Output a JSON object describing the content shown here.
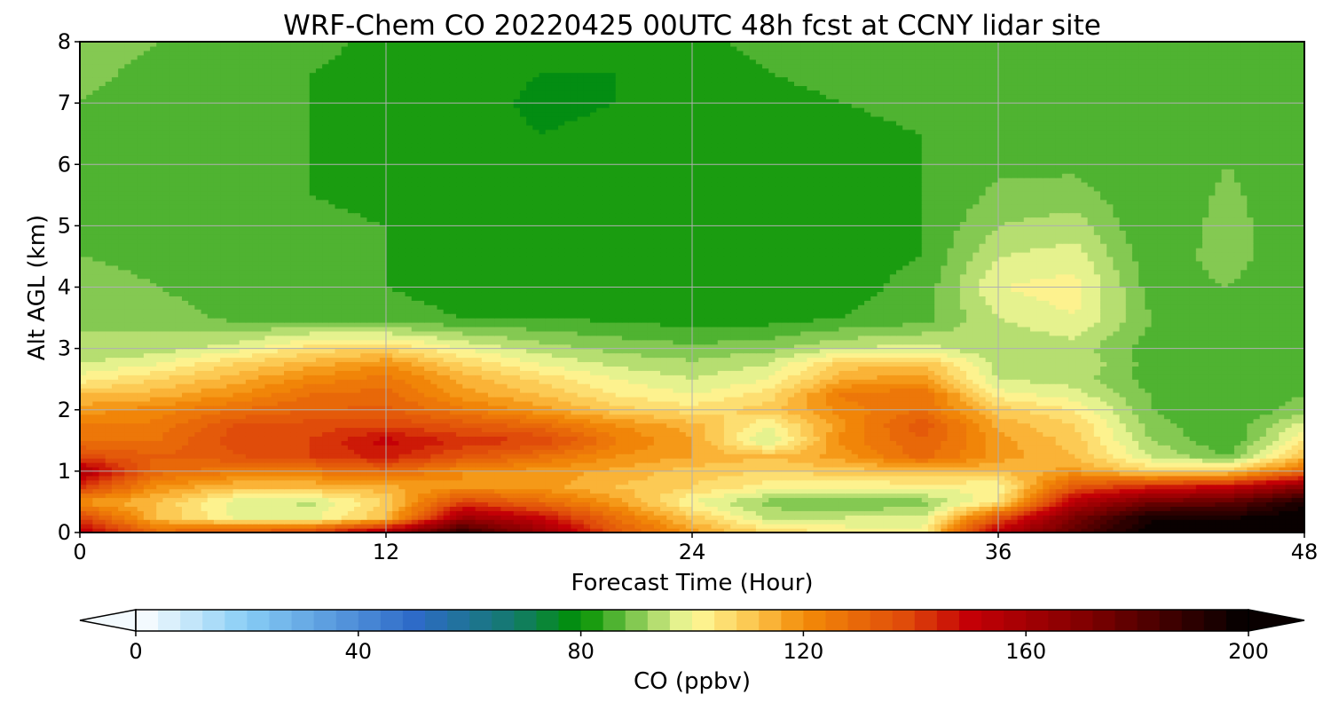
{
  "chart_data": {
    "type": "heatmap",
    "title": "WRF-Chem CO  20220425 00UTC 48h fcst at CCNY lidar site",
    "xlabel": "Forecast Time (Hour)",
    "ylabel": "Alt AGL (km)",
    "xlim": [
      0,
      48
    ],
    "ylim": [
      0,
      8
    ],
    "x_ticks": [
      "0",
      "12",
      "24",
      "36",
      "48"
    ],
    "y_ticks": [
      "0",
      "1",
      "2",
      "3",
      "4",
      "5",
      "6",
      "7",
      "8"
    ],
    "grid": true,
    "colorbar": {
      "label": "CO  (ppbv)",
      "range": [
        0,
        200
      ],
      "ticks": [
        "0",
        "40",
        "80",
        "120",
        "160",
        "200"
      ],
      "extend": "both",
      "colors": [
        {
          "value": 0,
          "color": "#ffffff"
        },
        {
          "value": 20,
          "color": "#87cdf5"
        },
        {
          "value": 50,
          "color": "#2e6bc8"
        },
        {
          "value": 68,
          "color": "#137a6c"
        },
        {
          "value": 80,
          "color": "#009100"
        },
        {
          "value": 92,
          "color": "#9ed462"
        },
        {
          "value": 100,
          "color": "#fdfc9c"
        },
        {
          "value": 112,
          "color": "#fcc046"
        },
        {
          "value": 120,
          "color": "#f38c08"
        },
        {
          "value": 138,
          "color": "#e04c0a"
        },
        {
          "value": 150,
          "color": "#c40006"
        },
        {
          "value": 172,
          "color": "#7c0000"
        },
        {
          "value": 200,
          "color": "#000000"
        }
      ]
    },
    "x": [
      0,
      3,
      6,
      9,
      12,
      15,
      18,
      21,
      24,
      27,
      30,
      33,
      36,
      39,
      42,
      45,
      48
    ],
    "y": [
      0,
      0.25,
      0.5,
      0.75,
      1,
      1.25,
      1.5,
      1.75,
      2,
      2.25,
      2.5,
      2.75,
      3,
      3.5,
      4,
      4.5,
      5,
      5.5,
      6,
      6.5,
      7,
      7.5,
      8
    ],
    "z": [
      [
        155,
        130,
        135,
        140,
        160,
        190,
        165,
        135,
        118,
        108,
        103,
        102,
        155,
        180,
        200,
        200,
        200
      ],
      [
        140,
        112,
        100,
        98,
        112,
        162,
        150,
        128,
        110,
        95,
        96,
        96,
        135,
        172,
        195,
        195,
        200
      ],
      [
        118,
        112,
        98,
        95,
        108,
        140,
        130,
        118,
        100,
        90,
        88,
        90,
        105,
        155,
        175,
        178,
        195
      ],
      [
        142,
        120,
        112,
        112,
        115,
        120,
        118,
        112,
        108,
        102,
        100,
        102,
        100,
        135,
        145,
        150,
        168
      ],
      [
        158,
        130,
        125,
        125,
        130,
        120,
        118,
        115,
        110,
        108,
        110,
        112,
        112,
        118,
        108,
        110,
        130
      ],
      [
        138,
        132,
        135,
        140,
        146,
        136,
        128,
        120,
        116,
        112,
        118,
        130,
        118,
        112,
        96,
        88,
        112
      ],
      [
        128,
        128,
        138,
        140,
        150,
        143,
        140,
        125,
        116,
        95,
        122,
        132,
        118,
        110,
        92,
        84,
        104
      ],
      [
        124,
        125,
        136,
        138,
        140,
        135,
        130,
        120,
        114,
        100,
        120,
        135,
        115,
        108,
        90,
        84,
        98
      ],
      [
        118,
        122,
        128,
        132,
        133,
        125,
        118,
        110,
        106,
        110,
        122,
        128,
        110,
        104,
        88,
        84,
        90
      ],
      [
        112,
        114,
        120,
        128,
        130,
        118,
        112,
        104,
        100,
        106,
        125,
        128,
        102,
        98,
        88,
        85,
        88
      ],
      [
        102,
        108,
        114,
        122,
        126,
        115,
        107,
        100,
        96,
        100,
        116,
        118,
        96,
        94,
        86,
        85,
        86
      ],
      [
        96,
        100,
        108,
        114,
        120,
        108,
        100,
        95,
        93,
        96,
        110,
        112,
        94,
        96,
        86,
        84,
        85
      ],
      [
        92,
        94,
        98,
        106,
        108,
        100,
        94,
        91,
        89,
        91,
        96,
        98,
        92,
        94,
        86,
        84,
        85
      ],
      [
        92,
        90,
        87,
        86,
        85,
        84,
        84,
        83,
        82,
        82,
        84,
        86,
        96,
        100,
        88,
        86,
        84
      ],
      [
        90,
        88,
        86,
        85,
        84,
        83,
        82,
        82,
        82,
        82,
        83,
        85,
        100,
        102,
        86,
        88,
        84
      ],
      [
        88,
        87,
        86,
        85,
        84,
        82,
        82,
        81,
        82,
        82,
        83,
        84,
        96,
        98,
        85,
        90,
        84
      ],
      [
        88,
        86,
        88,
        85,
        84,
        82,
        82,
        81,
        81,
        82,
        83,
        84,
        92,
        94,
        84,
        90,
        84
      ],
      [
        87,
        85,
        88,
        84,
        83,
        82,
        81,
        81,
        81,
        82,
        83,
        84,
        89,
        90,
        84,
        89,
        84
      ],
      [
        86,
        84,
        88,
        84,
        83,
        82,
        81,
        81,
        82,
        82,
        83,
        84,
        87,
        87,
        84,
        88,
        84
      ],
      [
        87,
        85,
        87,
        84,
        83,
        82,
        80,
        81,
        82,
        82,
        83,
        84,
        86,
        86,
        84,
        88,
        84
      ],
      [
        88,
        86,
        86,
        84,
        83,
        82,
        79,
        80,
        82,
        83,
        84,
        85,
        86,
        86,
        85,
        88,
        85
      ],
      [
        89,
        87,
        86,
        84,
        83,
        82,
        80,
        80,
        82,
        84,
        85,
        86,
        86,
        86,
        86,
        88,
        86
      ],
      [
        90,
        88,
        86,
        85,
        83,
        82,
        81,
        81,
        83,
        85,
        86,
        87,
        87,
        87,
        87,
        88,
        88
      ]
    ]
  }
}
